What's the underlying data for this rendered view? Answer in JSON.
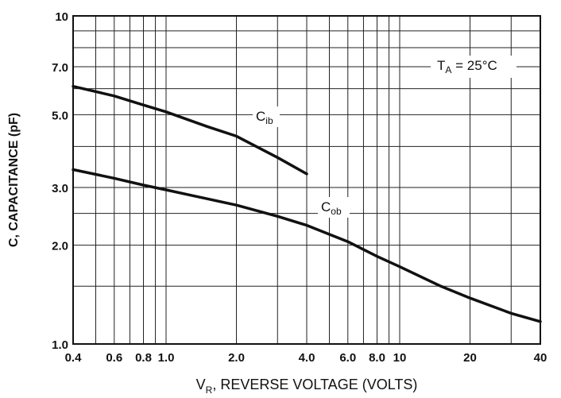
{
  "chart_data": {
    "type": "line",
    "xscale": "log",
    "yscale": "log",
    "xlim": [
      0.4,
      40
    ],
    "ylim": [
      1.0,
      10
    ],
    "grid": true,
    "x_ticks": [
      {
        "value": 0.4,
        "label": "0.4"
      },
      {
        "value": 0.6,
        "label": "0.6"
      },
      {
        "value": 0.8,
        "label": "0.8"
      },
      {
        "value": 1.0,
        "label": "1.0"
      },
      {
        "value": 2.0,
        "label": "2.0"
      },
      {
        "value": 4.0,
        "label": "4.0"
      },
      {
        "value": 6.0,
        "label": "6.0"
      },
      {
        "value": 8.0,
        "label": "8.0"
      },
      {
        "value": 10,
        "label": "10"
      },
      {
        "value": 20,
        "label": "20"
      },
      {
        "value": 40,
        "label": "40"
      }
    ],
    "y_ticks": [
      {
        "value": 1.0,
        "label": "1.0"
      },
      {
        "value": 2.0,
        "label": "2.0"
      },
      {
        "value": 3.0,
        "label": "3.0"
      },
      {
        "value": 5.0,
        "label": "5.0"
      },
      {
        "value": 7.0,
        "label": "7.0"
      },
      {
        "value": 10,
        "label": "10"
      }
    ],
    "x_grid": [
      0.4,
      0.5,
      0.6,
      0.7,
      0.8,
      0.9,
      1,
      2,
      3,
      4,
      5,
      6,
      7,
      8,
      9,
      10,
      20,
      30,
      40
    ],
    "y_grid": [
      1,
      1.5,
      2,
      2.5,
      3,
      4,
      5,
      6,
      7,
      8,
      9,
      10
    ],
    "xlabel": {
      "main": "V",
      "sub": "R",
      "rest": ", REVERSE VOLTAGE (VOLTS)"
    },
    "ylabel": "C, CAPACITANCE (pF)",
    "annotation": {
      "main": "T",
      "sub": "A",
      "rest": " = 25°C"
    },
    "series": [
      {
        "name": "Cib",
        "label_main": "C",
        "label_sub": "ib",
        "x": [
          0.4,
          0.6,
          0.8,
          1.0,
          1.5,
          2.0,
          3.0,
          4.0
        ],
        "y": [
          6.1,
          5.7,
          5.35,
          5.1,
          4.6,
          4.3,
          3.7,
          3.3
        ]
      },
      {
        "name": "Cob",
        "label_main": "C",
        "label_sub": "ob",
        "x": [
          0.4,
          0.6,
          0.8,
          1.0,
          2.0,
          3.0,
          4.0,
          6.0,
          8.0,
          10,
          15,
          20,
          30,
          40
        ],
        "y": [
          3.4,
          3.2,
          3.05,
          2.95,
          2.65,
          2.45,
          2.3,
          2.05,
          1.85,
          1.72,
          1.5,
          1.38,
          1.24,
          1.17
        ]
      }
    ]
  }
}
